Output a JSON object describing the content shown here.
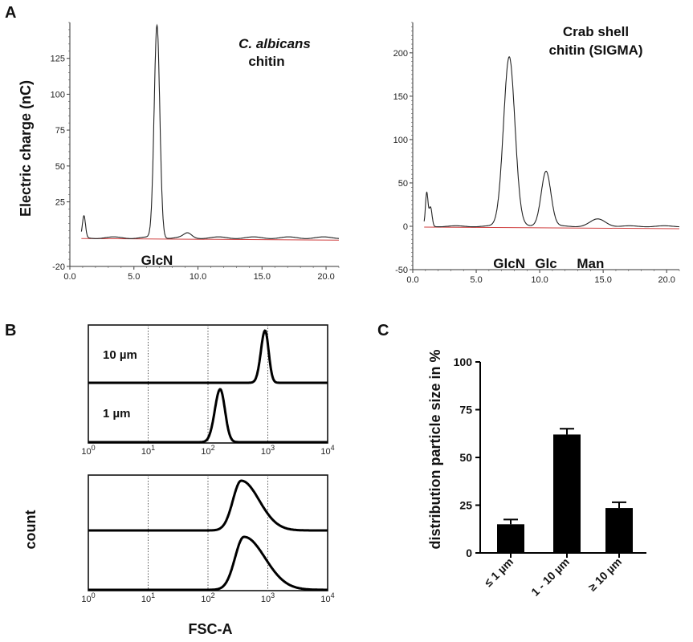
{
  "panels": {
    "a": "A",
    "b": "B",
    "c": "C"
  },
  "chart_data": [
    {
      "id": "A1",
      "type": "line",
      "title_line1": "C. albicans",
      "title_line2": "chitin",
      "ylabel": "Electric charge (nC)",
      "xlim": [
        0,
        21
      ],
      "ylim": [
        -20,
        150
      ],
      "xticks": [
        0.0,
        5.0,
        10.0,
        15.0,
        20.0
      ],
      "xtick_labels": [
        "0.0",
        "5.0",
        "10.0",
        "15.0",
        "20.0"
      ],
      "yticks": [
        -20,
        25,
        50,
        75,
        100,
        125
      ],
      "ytick_labels": [
        "-20",
        "25",
        "50",
        "75",
        "100",
        "125"
      ],
      "peaks": [
        {
          "x": 1.1,
          "height": 15,
          "width": 0.12
        },
        {
          "x": 6.8,
          "height": 148,
          "width": 0.22
        },
        {
          "x": 9.2,
          "height": 3,
          "width": 0.3
        }
      ],
      "annotations": [
        {
          "text": "GlcN",
          "x": 6.8
        }
      ]
    },
    {
      "id": "A2",
      "type": "line",
      "title_line1": "Crab shell",
      "title_line2": "chitin (SIGMA)",
      "xlim": [
        0,
        21
      ],
      "ylim": [
        -50,
        235
      ],
      "xticks": [
        0.0,
        5.0,
        10.0,
        15.0,
        20.0
      ],
      "xtick_labels": [
        "0.0",
        "5.0",
        "10.0",
        "15.0",
        "20.0"
      ],
      "yticks": [
        -50,
        0,
        50,
        100,
        150,
        200
      ],
      "ytick_labels": [
        "-50",
        "0",
        "50",
        "100",
        "150",
        "200"
      ],
      "peaks": [
        {
          "x": 1.1,
          "height": 38,
          "width": 0.1
        },
        {
          "x": 1.4,
          "height": 22,
          "width": 0.12
        },
        {
          "x": 7.6,
          "height": 196,
          "width": 0.45
        },
        {
          "x": 10.5,
          "height": 64,
          "width": 0.38
        },
        {
          "x": 14.6,
          "height": 8,
          "width": 0.6
        }
      ],
      "annotations": [
        {
          "text": "GlcN",
          "x": 7.6
        },
        {
          "text": "Glc",
          "x": 10.5
        },
        {
          "text": "Man",
          "x": 14.0
        }
      ]
    },
    {
      "id": "B",
      "type": "line",
      "xlabel": "FSC-A",
      "ylabel": "count",
      "xscale": "log",
      "xlim": [
        1,
        10000
      ],
      "xtick_base": "10",
      "xtick_exponents": [
        "0",
        "1",
        "2",
        "3",
        "4"
      ],
      "gridlines_at": [
        10,
        100,
        1000
      ],
      "histograms": [
        {
          "label": "10 µm",
          "peak": 900,
          "sigma_left": 0.07,
          "sigma_right": 0.06
        },
        {
          "label": "1 µm",
          "peak": 160,
          "sigma_left": 0.09,
          "sigma_right": 0.08
        },
        {
          "label": "",
          "peak": 360,
          "sigma_left": 0.14,
          "sigma_right": 0.3
        },
        {
          "label": "",
          "peak": 400,
          "sigma_left": 0.15,
          "sigma_right": 0.35
        }
      ]
    },
    {
      "id": "C",
      "type": "bar",
      "ylabel": "distribution particle size in %",
      "ylim": [
        0,
        100
      ],
      "yticks": [
        0,
        25,
        50,
        75,
        100
      ],
      "ytick_labels": [
        "0",
        "25",
        "50",
        "75",
        "100"
      ],
      "categories": [
        "≤ 1 µm",
        "1 - 10 µm",
        "≥ 10 µm"
      ],
      "values": [
        15,
        62,
        23.5
      ],
      "errors": [
        2.5,
        3,
        3
      ]
    }
  ]
}
